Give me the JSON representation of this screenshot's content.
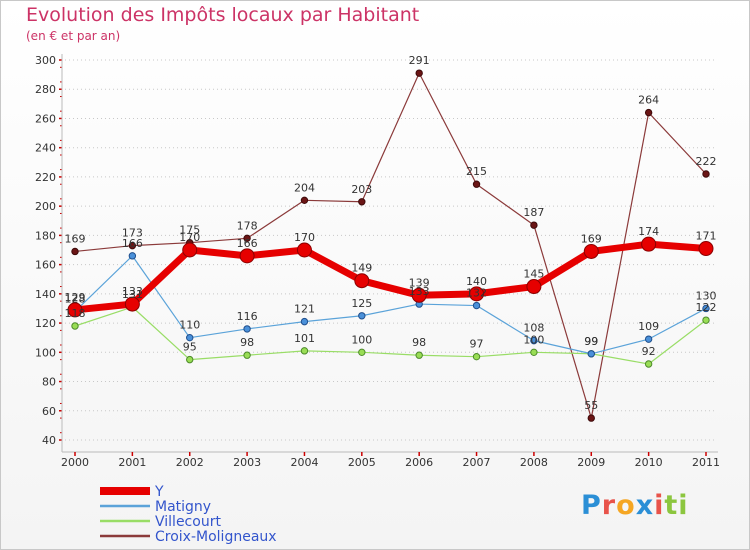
{
  "header": {
    "title": "Evolution des Impôts locaux par Habitant",
    "subtitle": "(en € et par an)"
  },
  "logo": {
    "text": "Proxiti",
    "letters": [
      "P",
      "r",
      "o",
      "x",
      "i",
      "t",
      "i"
    ],
    "colors": [
      "#2b8fd6",
      "#e8534a",
      "#f5a623",
      "#2b8fd6",
      "#e8534a",
      "#8cc63f",
      "#8cc63f"
    ]
  },
  "chart_data": {
    "type": "line",
    "title": "Evolution des Impôts locaux par Habitant",
    "subtitle": "(en € et par an)",
    "xlabel": "",
    "ylabel": "",
    "categories": [
      "2000",
      "2001",
      "2002",
      "2003",
      "2004",
      "2005",
      "2006",
      "2007",
      "2008",
      "2009",
      "2010",
      "2011"
    ],
    "ylim": [
      40,
      300
    ],
    "yticks": [
      40,
      60,
      80,
      100,
      120,
      140,
      160,
      180,
      200,
      220,
      240,
      260,
      280,
      300
    ],
    "grid": "horizontal dotted",
    "legend_position": "bottom-left",
    "series": [
      {
        "name": "Y",
        "color": "#e60000",
        "line_width": 7,
        "marker_radius": 7,
        "marker_fill": "#e60000",
        "marker_stroke": "#8b0000",
        "values": [
          129,
          133,
          170,
          166,
          170,
          149,
          139,
          140,
          145,
          169,
          174,
          171
        ],
        "labels": [
          "129",
          "133",
          "170",
          "166",
          "170",
          "149",
          "139",
          "140",
          "145",
          "169",
          "174",
          "171"
        ]
      },
      {
        "name": "Matigny",
        "color": "#5ba3d9",
        "line_width": 1.2,
        "marker_radius": 3.2,
        "marker_fill": "#4a90d9",
        "marker_stroke": "#1f4e8c",
        "values": [
          128,
          166,
          110,
          116,
          121,
          125,
          133,
          132,
          108,
          99,
          109,
          130
        ],
        "labels": [
          "128",
          "166",
          "110",
          "116",
          "121",
          "125",
          "133",
          "132",
          "108",
          "99",
          "109",
          "130"
        ]
      },
      {
        "name": "Villecourt",
        "color": "#99dd66",
        "line_width": 1.2,
        "marker_radius": 3.2,
        "marker_fill": "#99dd55",
        "marker_stroke": "#4c8a2a",
        "values": [
          118,
          131,
          95,
          98,
          101,
          100,
          98,
          97,
          100,
          99,
          92,
          122
        ],
        "labels": [
          "118",
          "131",
          "95",
          "98",
          "101",
          "100",
          "98",
          "97",
          "100",
          "99",
          "92",
          "122"
        ]
      },
      {
        "name": "Croix-Moligneaux",
        "color": "#8b3a3a",
        "line_width": 1.2,
        "marker_radius": 3.2,
        "marker_fill": "#6b1515",
        "marker_stroke": "#3d0a0a",
        "values": [
          169,
          173,
          175,
          178,
          204,
          203,
          291,
          215,
          187,
          55,
          264,
          222
        ],
        "labels": [
          "169",
          "173",
          "175",
          "178",
          "204",
          "203",
          "291",
          "215",
          "187",
          "55",
          "264",
          "222"
        ]
      }
    ]
  }
}
